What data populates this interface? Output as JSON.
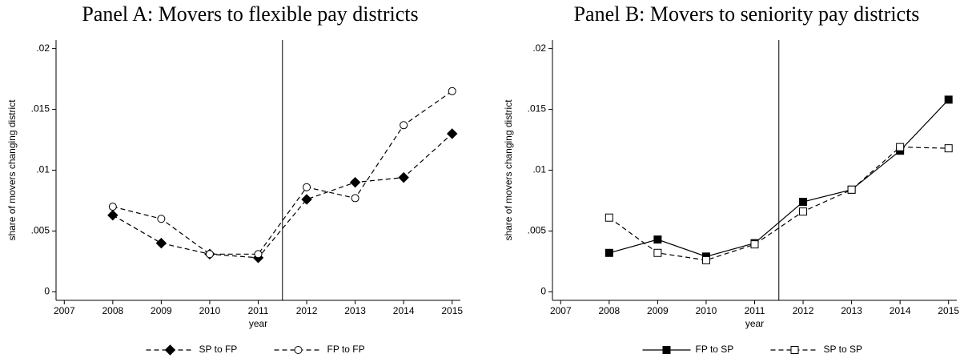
{
  "chart_data": [
    {
      "type": "line",
      "title": "Panel A: Movers to flexible pay districts",
      "x_label": "year",
      "y_label": "share of movers changing district",
      "x": [
        2008,
        2009,
        2010,
        2011,
        2012,
        2013,
        2014,
        2015
      ],
      "series": [
        {
          "name": "SP to FP",
          "color": "#000000",
          "dash": true,
          "marker": "diamond",
          "marker_fill": "#000000",
          "values": [
            0.0063,
            0.004,
            0.0031,
            0.0028,
            0.0076,
            0.009,
            0.0094,
            0.013
          ]
        },
        {
          "name": "FP to FP",
          "color": "#000000",
          "dash": true,
          "marker": "circle",
          "marker_fill": "#ffffff",
          "values": [
            0.007,
            0.006,
            0.0031,
            0.0031,
            0.0086,
            0.0077,
            0.0137,
            0.0165
          ]
        }
      ],
      "xlim": [
        2006.83,
        2015.17
      ],
      "xticks": [
        2007,
        2008,
        2009,
        2010,
        2011,
        2012,
        2013,
        2014,
        2015
      ],
      "ylim": [
        -0.0007,
        0.0207
      ],
      "yticks": [
        0,
        {
          "value": 0.005,
          "label": ".005"
        },
        {
          "value": 0.01,
          "label": ".01"
        },
        {
          "value": 0.015,
          "label": ".015"
        },
        {
          "value": 0.02,
          "label": ".02"
        }
      ],
      "vline": 2011.5,
      "grid": false,
      "legend": "bottom"
    },
    {
      "type": "line",
      "title": "Panel B: Movers to seniority pay districts",
      "x_label": "year",
      "y_label": "share of movers changing district",
      "x": [
        2008,
        2009,
        2010,
        2011,
        2012,
        2013,
        2014,
        2015
      ],
      "series": [
        {
          "name": "FP to SP",
          "color": "#000000",
          "dash": false,
          "marker": "square",
          "marker_fill": "#000000",
          "values": [
            0.0032,
            0.0043,
            0.0029,
            0.004,
            0.0074,
            0.0084,
            0.0116,
            0.0158
          ]
        },
        {
          "name": "SP to SP",
          "color": "#000000",
          "dash": true,
          "marker": "square",
          "marker_fill": "#ffffff",
          "values": [
            0.0061,
            0.0032,
            0.0026,
            0.0039,
            0.0066,
            0.0084,
            0.0119,
            0.0118
          ]
        }
      ],
      "xlim": [
        2006.83,
        2015.17
      ],
      "xticks": [
        2007,
        2008,
        2009,
        2010,
        2011,
        2012,
        2013,
        2014,
        2015
      ],
      "ylim": [
        -0.0007,
        0.0207
      ],
      "yticks": [
        0,
        {
          "value": 0.005,
          "label": ".005"
        },
        {
          "value": 0.01,
          "label": ".01"
        },
        {
          "value": 0.015,
          "label": ".015"
        },
        {
          "value": 0.02,
          "label": ".02"
        }
      ],
      "vline": 2011.5,
      "grid": false,
      "legend": "bottom"
    }
  ]
}
